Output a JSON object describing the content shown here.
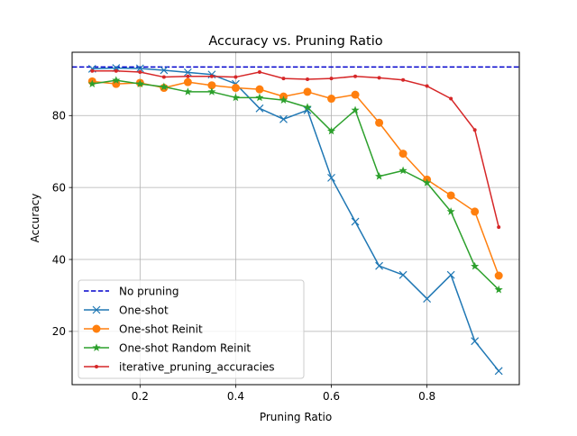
{
  "chart_data": {
    "type": "line",
    "title": "Accuracy vs. Pruning Ratio",
    "xlabel": "Pruning Ratio",
    "ylabel": "Accuracy",
    "xlim": [
      0.058,
      0.993
    ],
    "ylim": [
      5.2,
      97.6
    ],
    "xticks": [
      0.2,
      0.4,
      0.6,
      0.8
    ],
    "xtick_labels": [
      "0.2",
      "0.4",
      "0.6",
      "0.8"
    ],
    "yticks": [
      20,
      40,
      60,
      80
    ],
    "ytick_labels": [
      "20",
      "40",
      "60",
      "80"
    ],
    "grid": true,
    "legend_position": "lower-left",
    "baseline": {
      "name": "No pruning",
      "value": 93.5,
      "color": "#0000cc",
      "style": "dashed"
    },
    "x": [
      0.1,
      0.15,
      0.2,
      0.25,
      0.3,
      0.35,
      0.4,
      0.45,
      0.5,
      0.55,
      0.6,
      0.65,
      0.7,
      0.75,
      0.8,
      0.85,
      0.9,
      0.95
    ],
    "series": [
      {
        "name": "One-shot",
        "color": "#1f77b4",
        "marker": "x",
        "values": [
          93.0,
          93.2,
          93.1,
          92.6,
          92.0,
          91.4,
          88.8,
          82.0,
          79.0,
          81.5,
          62.7,
          50.5,
          38.2,
          35.7,
          29.1,
          35.7,
          17.3,
          9.0
        ]
      },
      {
        "name": "One-shot Reinit",
        "color": "#ff7f0e",
        "marker": "circle",
        "values": [
          89.5,
          88.8,
          89.1,
          87.7,
          89.3,
          88.4,
          87.7,
          87.3,
          85.3,
          86.6,
          84.7,
          85.8,
          78.0,
          69.4,
          62.2,
          57.8,
          53.3,
          35.5
        ]
      },
      {
        "name": "One-shot Random Reinit",
        "color": "#2ca02c",
        "marker": "star",
        "values": [
          88.8,
          89.8,
          88.8,
          88.0,
          86.6,
          86.6,
          85.0,
          85.0,
          84.3,
          82.3,
          75.7,
          81.5,
          63.1,
          64.7,
          61.3,
          53.3,
          38.1,
          31.6
        ]
      },
      {
        "name": "iterative_pruning_accuracies",
        "color": "#d62728",
        "marker": "dot",
        "values": [
          92.4,
          92.4,
          92.1,
          90.7,
          90.9,
          90.9,
          90.7,
          92.1,
          90.3,
          90.1,
          90.3,
          90.9,
          90.5,
          89.9,
          88.2,
          84.7,
          76.0,
          49.0
        ]
      }
    ]
  }
}
